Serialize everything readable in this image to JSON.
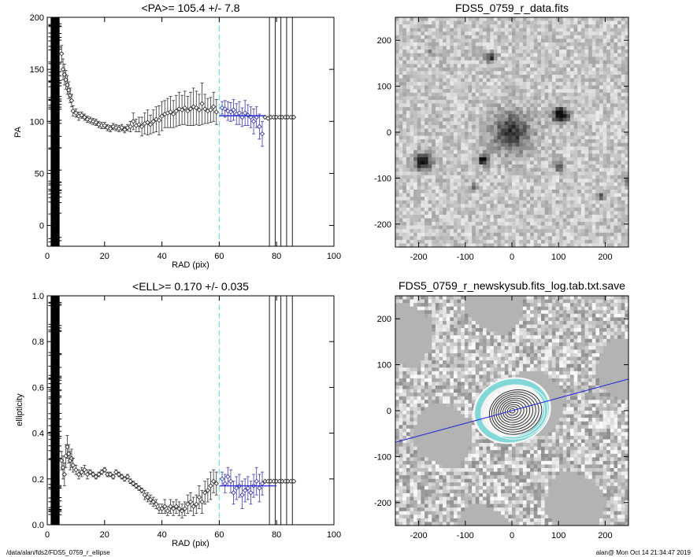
{
  "footer": {
    "path": "/data/alan/fds2/FDS5_0759_r_ellipse",
    "stamp": "alan@  Mon Oct 14 21:34:47 2019"
  },
  "colors": {
    "fit": "#2b2bd6",
    "marker": "#3a3aa8",
    "cut": "#7fe3e3",
    "ring": "#6fd3d3"
  },
  "chart_data": [
    {
      "id": "pa",
      "type": "scatter",
      "title": "<PA>= 105.4 +/-   7.8",
      "xlabel": "RAD (pix)",
      "ylabel": "PA",
      "xlim": [
        0,
        100
      ],
      "ylim": [
        -20,
        200
      ],
      "xticks": [
        0,
        20,
        40,
        60,
        80,
        100
      ],
      "yticks": [
        0,
        50,
        100,
        150,
        200
      ],
      "cut_x": 60,
      "vlines": [
        77.5,
        79.5,
        81.5,
        83.5,
        85.5
      ],
      "fit": {
        "x": [
          60,
          76
        ],
        "y": [
          105.4,
          105.4
        ]
      },
      "points": {
        "x": [
          5.0,
          5.5,
          6.0,
          6.5,
          7.0,
          7.5,
          8.0,
          8.5,
          9.0,
          10.0,
          11.0,
          12.0,
          13.0,
          14.0,
          15.0,
          16.0,
          17.0,
          18.0,
          19.0,
          20.0,
          21.0,
          22.0,
          23.0,
          24.0,
          25.0,
          26.0,
          27.0,
          28.0,
          29.0,
          30.0,
          31.0,
          32.0,
          33.0,
          34.0,
          35.0,
          36.0,
          37.0,
          38.0,
          39.0,
          40.0,
          41.0,
          42.0,
          43.0,
          44.0,
          45.0,
          46.0,
          47.0,
          48.0,
          49.0,
          50.0,
          51.0,
          52.0,
          53.0,
          54.0,
          55.0,
          56.0,
          57.0,
          58.0,
          59.0,
          61.0,
          62.0,
          63.0,
          64.0,
          65.0,
          66.0,
          67.0,
          68.0,
          69.0,
          70.0,
          71.0,
          72.0,
          73.0,
          74.0,
          75.0,
          76.0,
          77.0,
          78.0,
          79.0,
          80.0,
          81.0,
          82.0,
          83.0,
          84.0,
          85.0,
          86.0
        ],
        "y": [
          165,
          150,
          145,
          140,
          135,
          130,
          125,
          120,
          110,
          108,
          105,
          106,
          104,
          102,
          101,
          100,
          99,
          97,
          96,
          96,
          94,
          93,
          95,
          94,
          93,
          94,
          92,
          94,
          95,
          100,
          96,
          97,
          95,
          98,
          99,
          97,
          100,
          102,
          101,
          105,
          107,
          108,
          109,
          107,
          110,
          112,
          111,
          113,
          110,
          112,
          114,
          113,
          111,
          117,
          112,
          110,
          111,
          114,
          109,
          113,
          112,
          110,
          109,
          111,
          107,
          108,
          104,
          108,
          106,
          104,
          100,
          104,
          95,
          88,
          104,
          103,
          104,
          104,
          104,
          104,
          104,
          104,
          104,
          104,
          104
        ],
        "err": [
          8,
          10,
          10,
          9,
          9,
          8,
          7,
          6,
          5,
          4,
          4,
          3,
          3,
          3,
          3,
          3,
          3,
          3,
          3,
          3,
          3,
          3,
          3,
          3,
          3,
          3,
          3,
          3,
          5,
          8,
          6,
          7,
          9,
          10,
          12,
          9,
          11,
          12,
          14,
          14,
          13,
          14,
          15,
          13,
          15,
          16,
          14,
          16,
          14,
          16,
          18,
          16,
          15,
          20,
          14,
          12,
          12,
          14,
          12,
          6,
          8,
          9,
          9,
          10,
          10,
          11,
          9,
          12,
          10,
          10,
          12,
          10,
          12,
          12,
          0,
          0,
          0,
          0,
          0,
          0,
          0,
          0,
          0,
          0,
          0
        ]
      }
    },
    {
      "id": "ell",
      "type": "scatter",
      "title": "<ELL>= 0.170 +/-  0.035",
      "xlabel": "RAD (pix)",
      "ylabel": "ellipticity",
      "xlim": [
        0,
        100
      ],
      "ylim": [
        0,
        1
      ],
      "xticks": [
        0,
        20,
        40,
        60,
        80,
        100
      ],
      "yticks": [
        0.0,
        0.2,
        0.4,
        0.6,
        0.8,
        1.0
      ],
      "cut_x": 60,
      "vlines": [
        77.5,
        79.5,
        81.5,
        83.5,
        85.5
      ],
      "fit": {
        "x": [
          60,
          80
        ],
        "y": [
          0.17,
          0.17
        ]
      },
      "points": {
        "x": [
          5.0,
          5.5,
          6.0,
          6.5,
          7.0,
          7.5,
          8.0,
          8.5,
          9.0,
          10.0,
          11.0,
          12.0,
          13.0,
          14.0,
          15.0,
          16.0,
          17.0,
          18.0,
          19.0,
          20.0,
          21.0,
          22.0,
          23.0,
          24.0,
          25.0,
          26.0,
          27.0,
          28.0,
          29.0,
          30.0,
          31.0,
          32.0,
          33.0,
          34.0,
          35.0,
          36.0,
          37.0,
          38.0,
          39.0,
          40.0,
          41.0,
          42.0,
          43.0,
          44.0,
          45.0,
          46.0,
          47.0,
          48.0,
          49.0,
          50.0,
          51.0,
          52.0,
          53.0,
          54.0,
          55.0,
          56.0,
          57.0,
          58.0,
          59.0,
          61.0,
          62.0,
          63.0,
          64.0,
          65.0,
          66.0,
          67.0,
          68.0,
          69.0,
          70.0,
          71.0,
          72.0,
          73.0,
          74.0,
          75.0,
          76.0,
          77.0,
          78.0,
          79.0,
          80.0,
          81.0,
          82.0,
          83.0,
          84.0,
          85.0,
          86.0
        ],
        "y": [
          0.28,
          0.25,
          0.22,
          0.3,
          0.34,
          0.31,
          0.28,
          0.29,
          0.26,
          0.24,
          0.22,
          0.23,
          0.24,
          0.22,
          0.23,
          0.22,
          0.21,
          0.22,
          0.23,
          0.24,
          0.22,
          0.22,
          0.21,
          0.23,
          0.22,
          0.21,
          0.2,
          0.21,
          0.19,
          0.18,
          0.17,
          0.16,
          0.15,
          0.13,
          0.12,
          0.11,
          0.1,
          0.09,
          0.07,
          0.07,
          0.08,
          0.06,
          0.08,
          0.07,
          0.08,
          0.07,
          0.06,
          0.07,
          0.09,
          0.1,
          0.08,
          0.09,
          0.12,
          0.1,
          0.14,
          0.15,
          0.17,
          0.19,
          0.18,
          0.2,
          0.18,
          0.21,
          0.19,
          0.14,
          0.16,
          0.17,
          0.13,
          0.15,
          0.16,
          0.14,
          0.17,
          0.19,
          0.16,
          0.18,
          0.19,
          0.19,
          0.19,
          0.19,
          0.19,
          0.19,
          0.19,
          0.19,
          0.19,
          0.19,
          0.19
        ],
        "err": [
          0.04,
          0.05,
          0.05,
          0.05,
          0.05,
          0.04,
          0.04,
          0.04,
          0.03,
          0.02,
          0.02,
          0.02,
          0.02,
          0.02,
          0.01,
          0.01,
          0.01,
          0.01,
          0.01,
          0.01,
          0.01,
          0.01,
          0.01,
          0.01,
          0.01,
          0.01,
          0.01,
          0.01,
          0.01,
          0.01,
          0.01,
          0.01,
          0.01,
          0.02,
          0.02,
          0.02,
          0.02,
          0.02,
          0.02,
          0.02,
          0.03,
          0.02,
          0.03,
          0.03,
          0.03,
          0.03,
          0.03,
          0.03,
          0.04,
          0.04,
          0.04,
          0.04,
          0.05,
          0.05,
          0.05,
          0.05,
          0.06,
          0.05,
          0.05,
          0.03,
          0.04,
          0.04,
          0.05,
          0.05,
          0.05,
          0.05,
          0.06,
          0.05,
          0.05,
          0.05,
          0.05,
          0.06,
          0.06,
          0.05,
          0,
          0,
          0,
          0,
          0,
          0,
          0,
          0,
          0,
          0,
          0
        ]
      }
    },
    {
      "id": "img1",
      "type": "heatmap",
      "title": "FDS5_0759_r_data.fits",
      "xlim": [
        -250,
        250
      ],
      "ylim": [
        -250,
        250
      ],
      "xticks": [
        -200,
        -100,
        0,
        100,
        200
      ],
      "yticks": [
        -200,
        -100,
        0,
        100,
        200
      ],
      "sources": [
        {
          "x": 0,
          "y": 0,
          "r": 42,
          "peak": 0.55
        },
        {
          "x": 105,
          "y": 37,
          "r": 16,
          "peak": 0.95
        },
        {
          "x": -190,
          "y": -65,
          "r": 18,
          "peak": 0.8
        },
        {
          "x": -60,
          "y": -60,
          "r": 12,
          "peak": 0.85
        },
        {
          "x": -45,
          "y": 162,
          "r": 11,
          "peak": 0.6
        },
        {
          "x": 100,
          "y": -75,
          "r": 10,
          "peak": 0.5
        },
        {
          "x": -80,
          "y": -120,
          "r": 8,
          "peak": 0.5
        },
        {
          "x": 190,
          "y": -140,
          "r": 8,
          "peak": 0.4
        },
        {
          "x": -175,
          "y": 175,
          "r": 8,
          "peak": 0.3
        },
        {
          "x": 245,
          "y": -105,
          "r": 8,
          "peak": 0.4
        }
      ]
    },
    {
      "id": "img2",
      "type": "heatmap",
      "title": "FDS5_0759_r_newskysub.fits_log.tab.txt.save",
      "xlim": [
        -250,
        250
      ],
      "ylim": [
        -250,
        250
      ],
      "xticks": [
        -200,
        -100,
        0,
        100,
        200
      ],
      "yticks": [
        -200,
        -100,
        0,
        100,
        200
      ],
      "pa_line": {
        "angle_deg": 15.4
      },
      "ellipses": {
        "count": 12,
        "max_sma": 80,
        "pa_deg": 15.4,
        "ell": 0.17
      }
    }
  ]
}
